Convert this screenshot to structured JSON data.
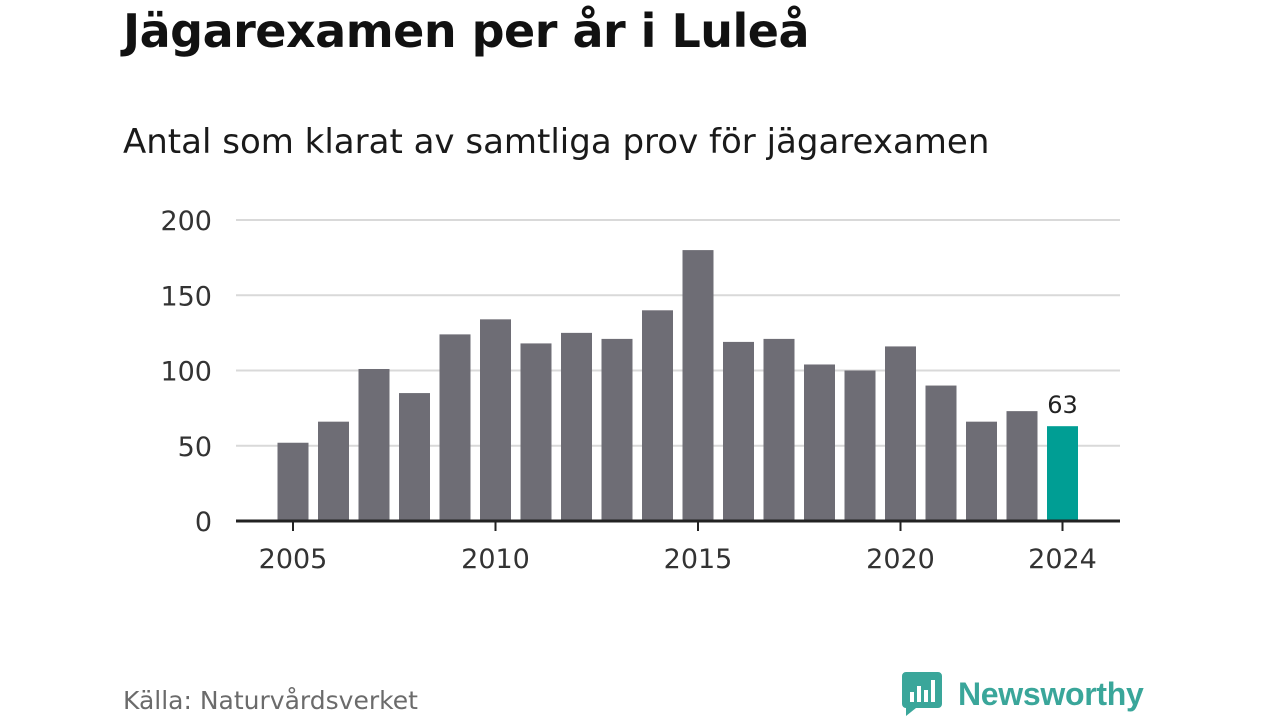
{
  "title": "Jägarexamen per år i Luleå",
  "subtitle": "Antal som klarat av samtliga prov för jägarexamen",
  "source": "Källa: Naturvårdsverket",
  "brand": {
    "name": "Newsworthy",
    "color": "#3aa69a",
    "icon": "newsworthy-chart-bubble-icon"
  },
  "colors": {
    "bar": "#6e6d75",
    "highlight": "#009e94",
    "grid": "#d9d9d9",
    "axis": "#222222"
  },
  "chart_data": {
    "type": "bar",
    "x": [
      2005,
      2006,
      2007,
      2008,
      2009,
      2010,
      2011,
      2012,
      2013,
      2014,
      2015,
      2016,
      2017,
      2018,
      2019,
      2020,
      2021,
      2022,
      2023,
      2024
    ],
    "values": [
      52,
      66,
      101,
      85,
      124,
      134,
      118,
      125,
      121,
      140,
      180,
      119,
      121,
      104,
      100,
      116,
      90,
      66,
      73,
      63
    ],
    "highlight_index": 19,
    "data_labels": [
      {
        "index": 19,
        "text": "63"
      }
    ],
    "ylim": [
      0,
      200
    ],
    "yticks": [
      0,
      50,
      100,
      150,
      200
    ],
    "xticks": [
      2005,
      2010,
      2015,
      2020,
      2024
    ],
    "grid": true
  }
}
